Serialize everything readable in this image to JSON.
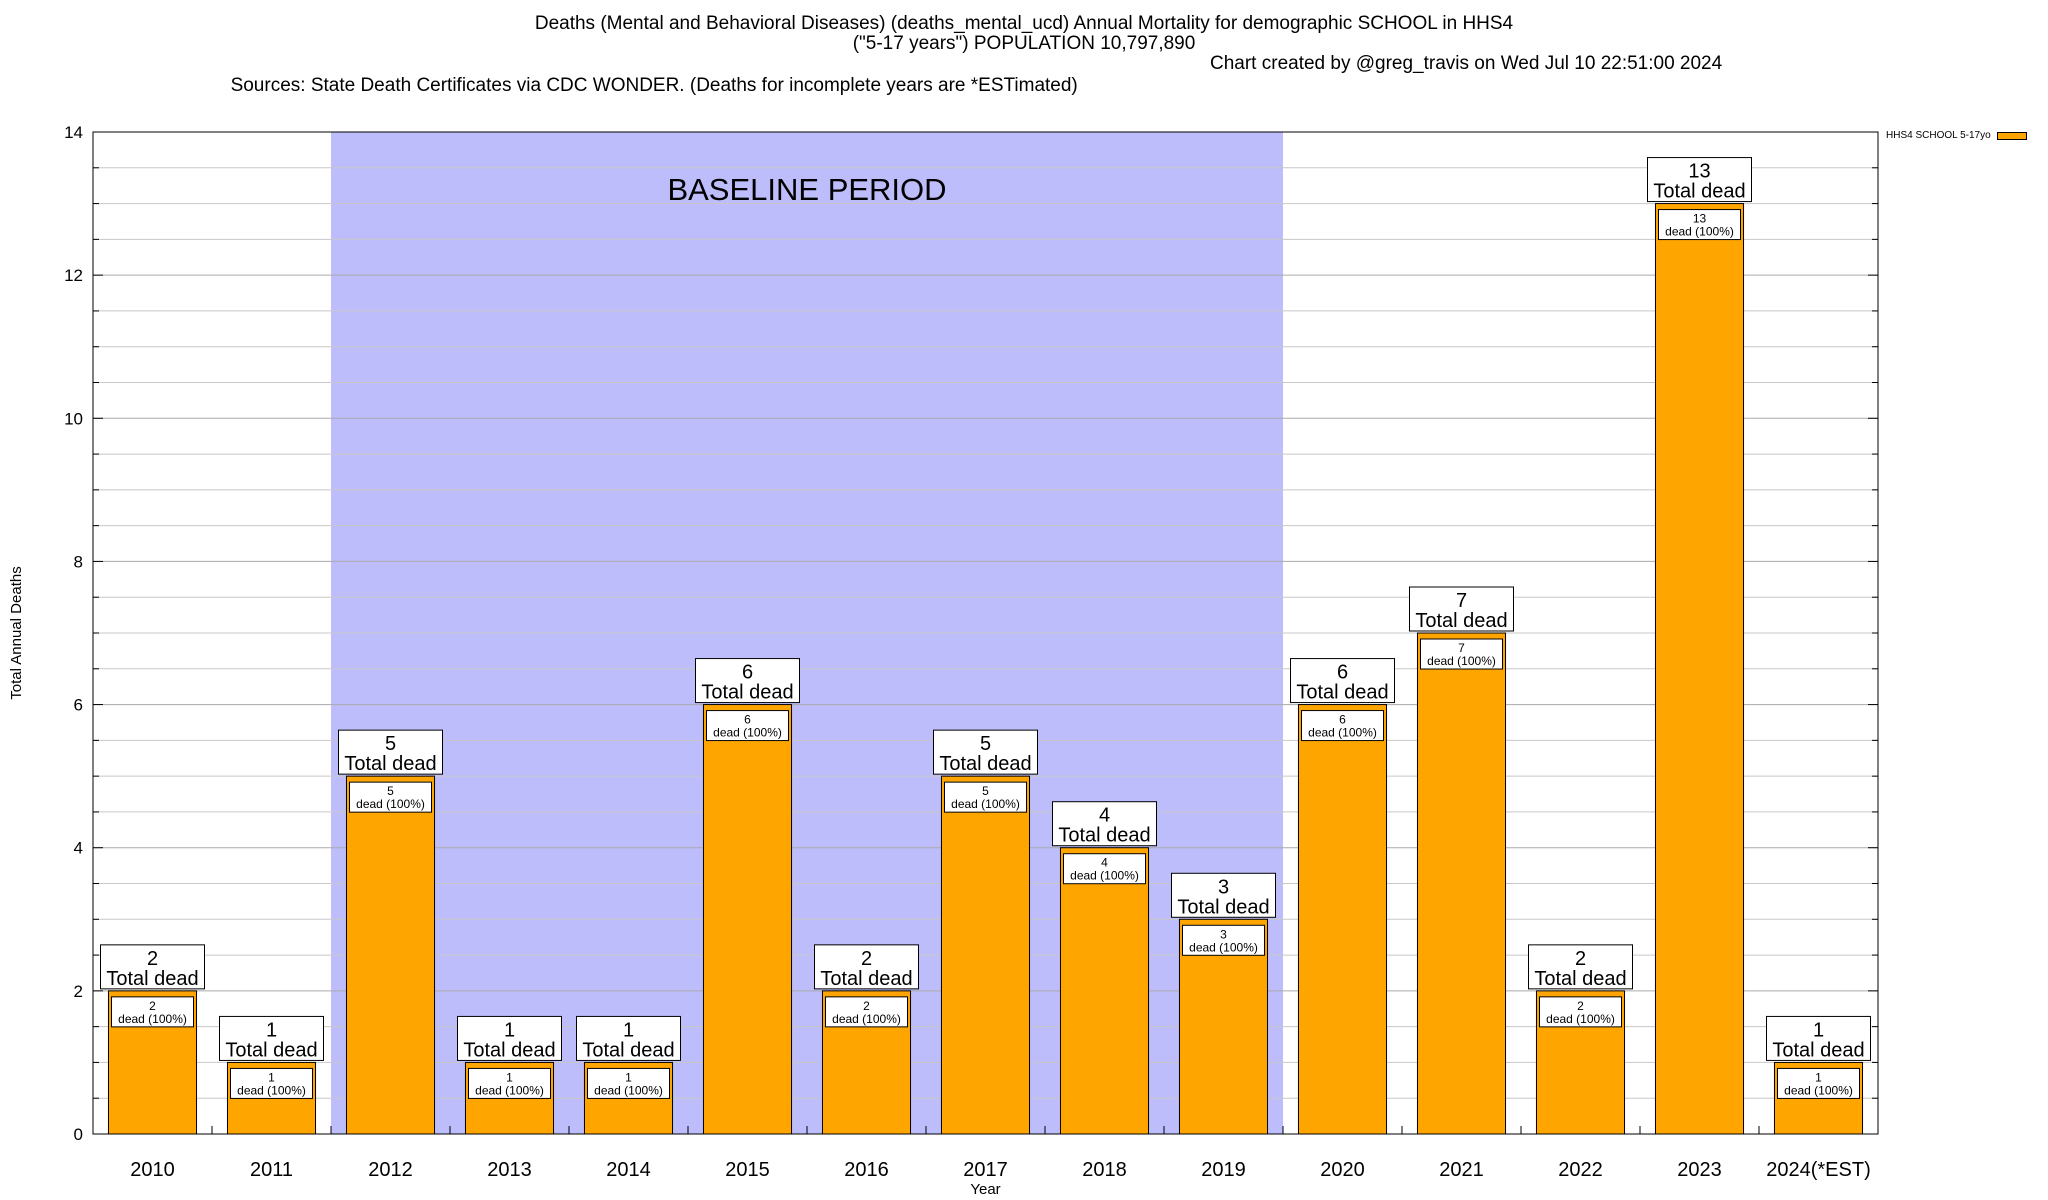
{
  "header": {
    "title_line1": "Deaths (Mental and Behavioral Diseases) (deaths_mental_ucd) Annual Mortality for demographic SCHOOL in HHS4",
    "title_line2": "(\"5-17 years\") POPULATION 10,797,890",
    "sources": "Sources: State Death Certificates via CDC WONDER. (Deaths for incomplete years are *ESTimated)",
    "credit": "Chart created by @greg_travis on Wed Jul 10 22:51:00 2024"
  },
  "legend": {
    "label": "HHS4 SCHOOL 5-17yo",
    "color": "#ffa500"
  },
  "chart_data": {
    "type": "bar",
    "categories": [
      "2010",
      "2011",
      "2012",
      "2013",
      "2014",
      "2015",
      "2016",
      "2017",
      "2018",
      "2019",
      "2020",
      "2021",
      "2022",
      "2023",
      "2024(*EST)"
    ],
    "series": [
      {
        "name": "HHS4 SCHOOL 5-17yo",
        "values": [
          2,
          1,
          5,
          1,
          1,
          6,
          2,
          5,
          4,
          3,
          6,
          7,
          2,
          13,
          1
        ],
        "color": "#ffa500"
      }
    ],
    "xlabel": "Year",
    "ylabel": "Total Annual Deaths",
    "ylim": [
      0,
      14
    ],
    "yticks": [
      0,
      2,
      4,
      6,
      8,
      10,
      12,
      14
    ],
    "grid": true,
    "total_label": "Total dead",
    "inner_label_suffix": "dead (100%)",
    "baseline": {
      "label": "BASELINE PERIOD",
      "from": "2012",
      "to": "2019",
      "color": "#bdbdfb"
    },
    "legend_position": "top-right"
  }
}
